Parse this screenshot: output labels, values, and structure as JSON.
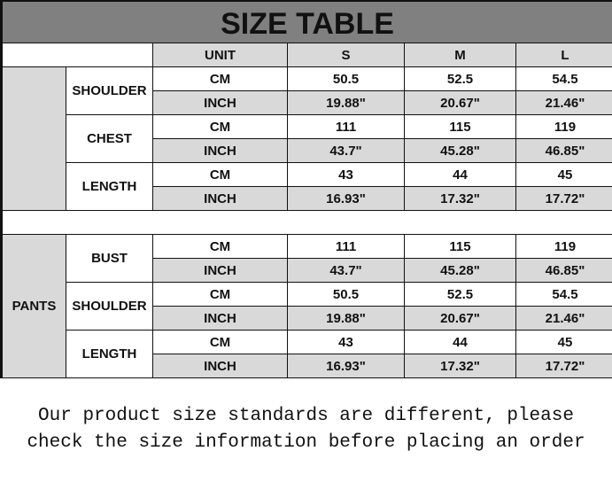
{
  "title": "SIZE TABLE",
  "header": {
    "unit": "UNIT",
    "sizes": [
      "S",
      "M",
      "L"
    ]
  },
  "sections": [
    {
      "label": "",
      "groups": [
        {
          "name": "SHOULDER",
          "rows": [
            {
              "unit": "CM",
              "values": [
                "50.5",
                "52.5",
                "54.5"
              ]
            },
            {
              "unit": "INCH",
              "values": [
                "19.88\"",
                "20.67\"",
                "21.46\""
              ]
            }
          ]
        },
        {
          "name": "CHEST",
          "rows": [
            {
              "unit": "CM",
              "values": [
                "111",
                "115",
                "119"
              ]
            },
            {
              "unit": "INCH",
              "values": [
                "43.7\"",
                "45.28\"",
                "46.85\""
              ]
            }
          ]
        },
        {
          "name": "LENGTH",
          "rows": [
            {
              "unit": "CM",
              "values": [
                "43",
                "44",
                "45"
              ]
            },
            {
              "unit": "INCH",
              "values": [
                "16.93\"",
                "17.32\"",
                "17.72\""
              ]
            }
          ]
        }
      ]
    },
    {
      "label": "PANTS",
      "groups": [
        {
          "name": "BUST",
          "rows": [
            {
              "unit": "CM",
              "values": [
                "111",
                "115",
                "119"
              ]
            },
            {
              "unit": "INCH",
              "values": [
                "43.7\"",
                "45.28\"",
                "46.85\""
              ]
            }
          ]
        },
        {
          "name": "SHOULDER",
          "rows": [
            {
              "unit": "CM",
              "values": [
                "50.5",
                "52.5",
                "54.5"
              ]
            },
            {
              "unit": "INCH",
              "values": [
                "19.88\"",
                "20.67\"",
                "21.46\""
              ]
            }
          ]
        },
        {
          "name": "LENGTH",
          "rows": [
            {
              "unit": "CM",
              "values": [
                "43",
                "44",
                "45"
              ]
            },
            {
              "unit": "INCH",
              "values": [
                "16.93\"",
                "17.32\"",
                "17.72\""
              ]
            }
          ]
        }
      ]
    }
  ],
  "note": [
    "Our product size standards are different, please",
    "check the size information before placing an order"
  ]
}
